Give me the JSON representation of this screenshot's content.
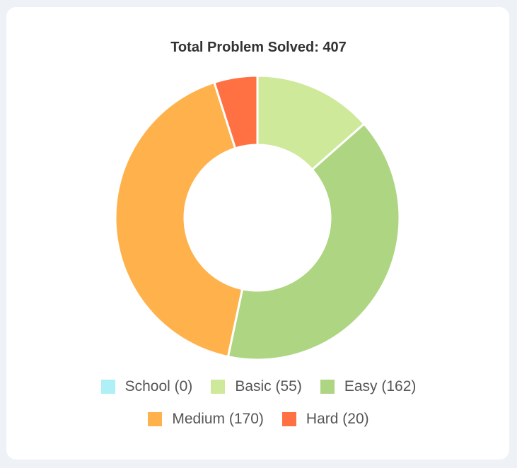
{
  "chart_data": {
    "type": "pie",
    "title": "Total Problem Solved: 407",
    "donut": true,
    "categories": [
      "School",
      "Basic",
      "Easy",
      "Medium",
      "Hard"
    ],
    "values": [
      0,
      55,
      162,
      170,
      20
    ],
    "colors": [
      "#aef0f5",
      "#cfe99a",
      "#aed581",
      "#ffb24c",
      "#ff7043"
    ],
    "legend_labels": [
      "School (0)",
      "Basic (55)",
      "Easy (162)",
      "Medium (170)",
      "Hard (20)"
    ],
    "legend_position": "bottom"
  }
}
